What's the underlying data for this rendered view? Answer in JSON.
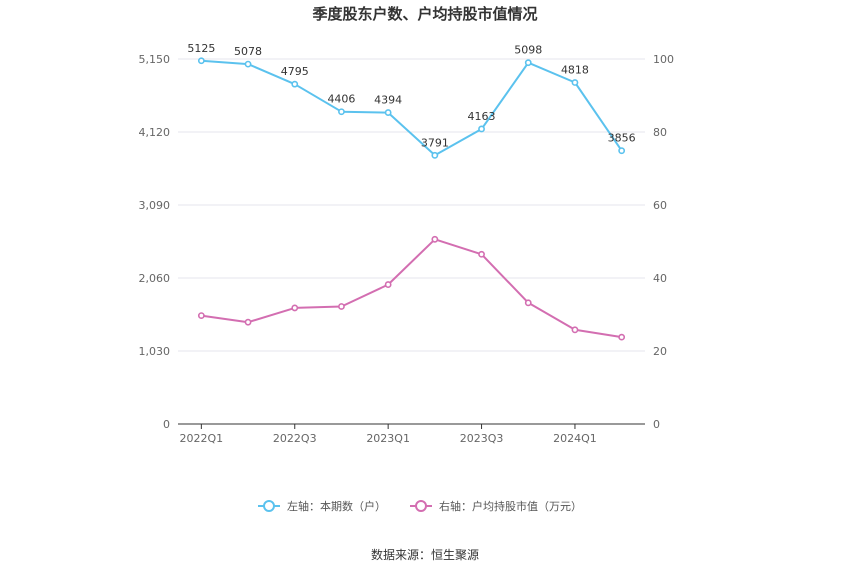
{
  "chart_data": {
    "type": "line",
    "title": "季度股东户数、户均持股市值情况",
    "x": [
      "2022Q1",
      "2022Q2",
      "2022Q3",
      "2022Q4",
      "2023Q1",
      "2023Q2",
      "2023Q3",
      "2023Q4",
      "2024Q1",
      "2024Q2"
    ],
    "x_tick_labels": [
      "2022Q1",
      "2022Q3",
      "2023Q1",
      "2023Q3",
      "2024Q1"
    ],
    "y_left": {
      "ticks": [
        "0",
        "1,030",
        "2,060",
        "3,090",
        "4,120",
        "5,150"
      ],
      "range": [
        0,
        5150
      ]
    },
    "y_right": {
      "ticks": [
        "0",
        "20",
        "40",
        "60",
        "80",
        "100"
      ],
      "range": [
        0,
        100
      ]
    },
    "grid": true,
    "legend_position": "bottom",
    "series": [
      {
        "name": "左轴：本期数（户）",
        "axis": "left",
        "color": "#5bc2ee",
        "values": [
          5125,
          5078,
          4795,
          4406,
          4394,
          3791,
          4163,
          5098,
          4818,
          3856
        ],
        "labels": [
          "5125",
          "5078",
          "4795",
          "4406",
          "4394",
          "3791",
          "4163",
          "5098",
          "4818",
          "3856"
        ]
      },
      {
        "name": "右轴：户均持股市值（万元）",
        "axis": "right",
        "color": "#d36eb1",
        "values": [
          29.7,
          27.9,
          31.8,
          32.2,
          38.2,
          50.6,
          46.5,
          33.2,
          25.8,
          23.8
        ]
      }
    ]
  },
  "source": "数据来源：恒生聚源"
}
